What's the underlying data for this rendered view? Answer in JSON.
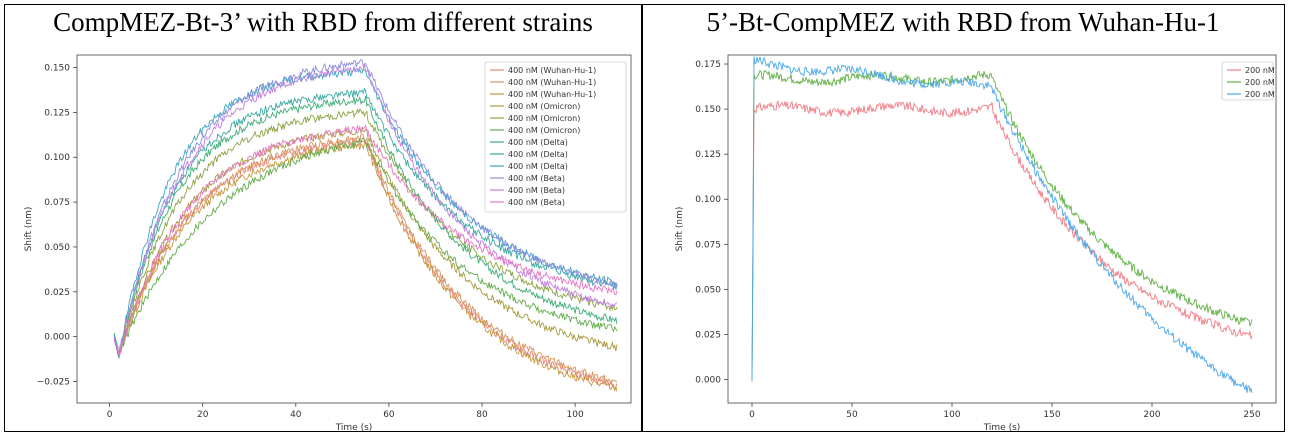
{
  "chart_data": [
    {
      "type": "line",
      "title": "CompMEZ-Bt-3’ with RBD from different strains",
      "xlabel": "Time (s)",
      "ylabel": "Shift (nm)",
      "xlim": [
        -7,
        112
      ],
      "ylim": [
        -0.037,
        0.157
      ],
      "xticks": [
        0,
        20,
        40,
        60,
        80,
        100
      ],
      "yticks": [
        -0.025,
        0.0,
        0.025,
        0.05,
        0.075,
        0.1,
        0.125,
        0.15
      ],
      "ytick_labels": [
        "−0.025",
        "0.000",
        "0.025",
        "0.050",
        "0.075",
        "0.100",
        "0.125",
        "0.150"
      ],
      "grid": false,
      "legend_position": "top-right",
      "assoc_end": 55,
      "t_start": 1,
      "t_end": 109,
      "series": [
        {
          "name": "400 nM (Wuhan-Hu-1)",
          "color": "#e6837f",
          "peak": 0.109,
          "end": -0.027,
          "k": 0.07,
          "seed": 11
        },
        {
          "name": "400 nM (Wuhan-Hu-1)",
          "color": "#d9955c",
          "peak": 0.111,
          "end": -0.025,
          "k": 0.068,
          "seed": 12
        },
        {
          "name": "400 nM (Wuhan-Hu-1)",
          "color": "#c8983f",
          "peak": 0.107,
          "end": -0.029,
          "k": 0.066,
          "seed": 13
        },
        {
          "name": "400 nM (Omicron)",
          "color": "#a99a3d",
          "peak": 0.115,
          "end": -0.006,
          "k": 0.072,
          "seed": 14
        },
        {
          "name": "400 nM (Omicron)",
          "color": "#8ba443",
          "peak": 0.125,
          "end": 0.016,
          "k": 0.078,
          "seed": 15
        },
        {
          "name": "400 nM (Omicron)",
          "color": "#62ad4c",
          "peak": 0.109,
          "end": 0.004,
          "k": 0.05,
          "seed": 16
        },
        {
          "name": "400 nM (Delta)",
          "color": "#3fae78",
          "peak": 0.132,
          "end": 0.009,
          "k": 0.082,
          "seed": 17
        },
        {
          "name": "400 nM (Delta)",
          "color": "#3aa9a0",
          "peak": 0.136,
          "end": 0.028,
          "k": 0.085,
          "seed": 18
        },
        {
          "name": "400 nM (Delta)",
          "color": "#3da5c4",
          "peak": 0.148,
          "end": 0.03,
          "k": 0.09,
          "seed": 19
        },
        {
          "name": "400 nM (Beta)",
          "color": "#8e8fe0",
          "peak": 0.153,
          "end": 0.029,
          "k": 0.076,
          "seed": 20
        },
        {
          "name": "400 nM (Beta)",
          "color": "#c27fe2",
          "peak": 0.15,
          "end": 0.017,
          "k": 0.074,
          "seed": 21
        },
        {
          "name": "400 nM (Beta)",
          "color": "#e479c2",
          "peak": 0.116,
          "end": 0.025,
          "k": 0.07,
          "seed": 22
        }
      ]
    },
    {
      "type": "line",
      "title": "5’-Bt-CompMEZ with RBD from Wuhan-Hu-1",
      "xlabel": "Time (s)",
      "ylabel": "Shift (nm)",
      "xlim": [
        -12,
        262
      ],
      "ylim": [
        -0.013,
        0.18
      ],
      "xticks": [
        0,
        50,
        100,
        150,
        200,
        250
      ],
      "yticks": [
        0.0,
        0.025,
        0.05,
        0.075,
        0.1,
        0.125,
        0.15,
        0.175
      ],
      "ytick_labels": [
        "0.000",
        "0.025",
        "0.050",
        "0.075",
        "0.100",
        "0.125",
        "0.150",
        "0.175"
      ],
      "grid": false,
      "legend_position": "top-right",
      "assoc_end": 120,
      "t_start": 0,
      "t_end": 250,
      "series": [
        {
          "name": "200 nM",
          "color": "#f07c86",
          "peak": 0.15,
          "end": 0.024,
          "seed": 31
        },
        {
          "name": "200 nM",
          "color": "#5fb043",
          "peak": 0.167,
          "end": 0.031,
          "seed": 32
        },
        {
          "name": "200 nM",
          "color": "#4aa8ea",
          "peak": 0.176,
          "end": -0.007,
          "seed": 33
        }
      ]
    }
  ]
}
